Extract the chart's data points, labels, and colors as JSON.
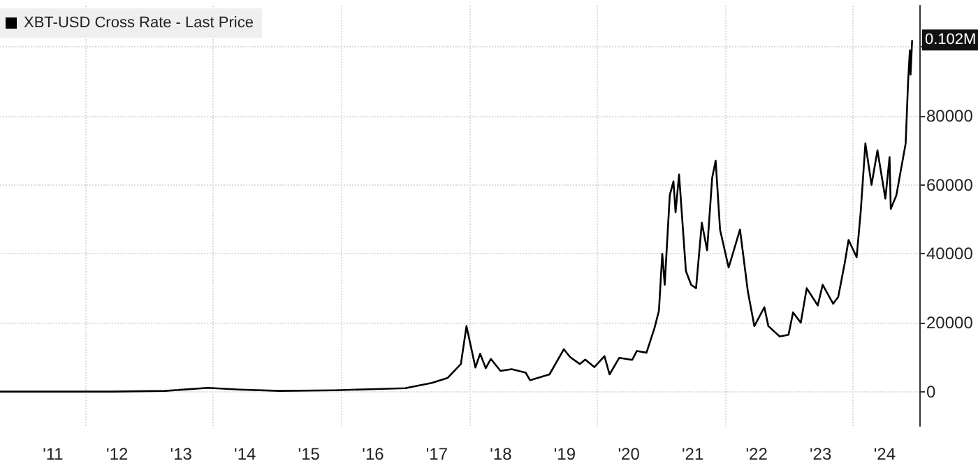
{
  "chart_data": {
    "type": "line",
    "legend": "top left",
    "grid": true,
    "marker": "none",
    "line_style": "solid",
    "xlim": [
      "2010-09-01",
      "2025-01-15"
    ],
    "ylim": [
      -10000,
      112000
    ],
    "xticks": [
      {
        "value": "2011-07-01",
        "label": "'11"
      },
      {
        "value": "2012-01-01",
        "label": null
      },
      {
        "value": "2012-07-01",
        "label": "'12"
      },
      {
        "value": "2013-07-01",
        "label": "'13"
      },
      {
        "value": "2014-01-01",
        "label": null
      },
      {
        "value": "2014-07-01",
        "label": "'14"
      },
      {
        "value": "2015-07-01",
        "label": "'15"
      },
      {
        "value": "2016-01-01",
        "label": null
      },
      {
        "value": "2016-07-01",
        "label": "'16"
      },
      {
        "value": "2017-07-01",
        "label": "'17"
      },
      {
        "value": "2018-01-01",
        "label": null
      },
      {
        "value": "2018-07-01",
        "label": "'18"
      },
      {
        "value": "2019-07-01",
        "label": "'19"
      },
      {
        "value": "2020-01-01",
        "label": null
      },
      {
        "value": "2020-07-01",
        "label": "'20"
      },
      {
        "value": "2021-07-01",
        "label": "'21"
      },
      {
        "value": "2022-01-01",
        "label": null
      },
      {
        "value": "2022-07-01",
        "label": "'22"
      },
      {
        "value": "2023-07-01",
        "label": "'23"
      },
      {
        "value": "2024-01-01",
        "label": null
      },
      {
        "value": "2024-07-01",
        "label": "'24"
      }
    ],
    "yticks": [
      0,
      20000,
      40000,
      60000,
      80000,
      {
        "value": 100000,
        "label": null
      }
    ],
    "annotations": [
      {
        "text": "0.102M",
        "x": "2024-12-05",
        "y": 102000
      }
    ],
    "series": [
      {
        "name": "XBT-USD Cross Rate - Last Price",
        "color": "#000000",
        "x": [
          "2010-09-01",
          "2011-06-01",
          "2012-06-01",
          "2013-04-01",
          "2013-12-01",
          "2014-06-01",
          "2015-01-15",
          "2015-12-01",
          "2016-06-15",
          "2017-01-01",
          "2017-06-01",
          "2017-09-01",
          "2017-11-15",
          "2017-12-17",
          "2018-02-06",
          "2018-03-05",
          "2018-04-06",
          "2018-05-05",
          "2018-06-29",
          "2018-09-01",
          "2018-11-20",
          "2018-12-15",
          "2019-04-05",
          "2019-06-26",
          "2019-08-01",
          "2019-09-25",
          "2019-10-26",
          "2019-12-17",
          "2020-02-13",
          "2020-03-13",
          "2020-05-07",
          "2020-07-20",
          "2020-08-16",
          "2020-10-10",
          "2020-11-25",
          "2020-12-20",
          "2021-01-08",
          "2021-01-22",
          "2021-02-20",
          "2021-03-13",
          "2021-03-25",
          "2021-04-14",
          "2021-05-23",
          "2021-06-22",
          "2021-07-20",
          "2021-08-22",
          "2021-09-21",
          "2021-10-20",
          "2021-11-09",
          "2021-12-04",
          "2022-01-22",
          "2022-03-28",
          "2022-05-12",
          "2022-06-18",
          "2022-08-14",
          "2022-09-06",
          "2022-11-10",
          "2022-12-30",
          "2023-01-25",
          "2023-03-10",
          "2023-04-13",
          "2023-06-15",
          "2023-07-13",
          "2023-09-11",
          "2023-10-10",
          "2023-11-15",
          "2023-12-08",
          "2024-01-23",
          "2024-02-15",
          "2024-03-13",
          "2024-04-17",
          "2024-05-21",
          "2024-07-05",
          "2024-07-29",
          "2024-08-05",
          "2024-09-06",
          "2024-10-29",
          "2024-11-12",
          "2024-11-22",
          "2024-11-26",
          "2024-12-05"
        ],
        "values": [
          0,
          0,
          0,
          200,
          1100,
          600,
          200,
          400,
          700,
          1000,
          2500,
          4000,
          8000,
          19000,
          7000,
          11000,
          6800,
          9500,
          6000,
          6500,
          5500,
          3300,
          5000,
          12300,
          10000,
          8000,
          9300,
          7100,
          10300,
          5000,
          9800,
          9200,
          11800,
          11300,
          18500,
          23500,
          40000,
          31000,
          57000,
          61000,
          52000,
          63000,
          35000,
          31000,
          30000,
          49000,
          41000,
          62000,
          67000,
          47000,
          36000,
          47000,
          29000,
          19000,
          24500,
          19000,
          16000,
          16500,
          23000,
          20000,
          30000,
          25000,
          31000,
          25500,
          27500,
          37000,
          44000,
          39000,
          52000,
          72000,
          60000,
          70000,
          56000,
          68000,
          53000,
          57000,
          72000,
          90000,
          99000,
          92000,
          102000
        ]
      }
    ]
  }
}
